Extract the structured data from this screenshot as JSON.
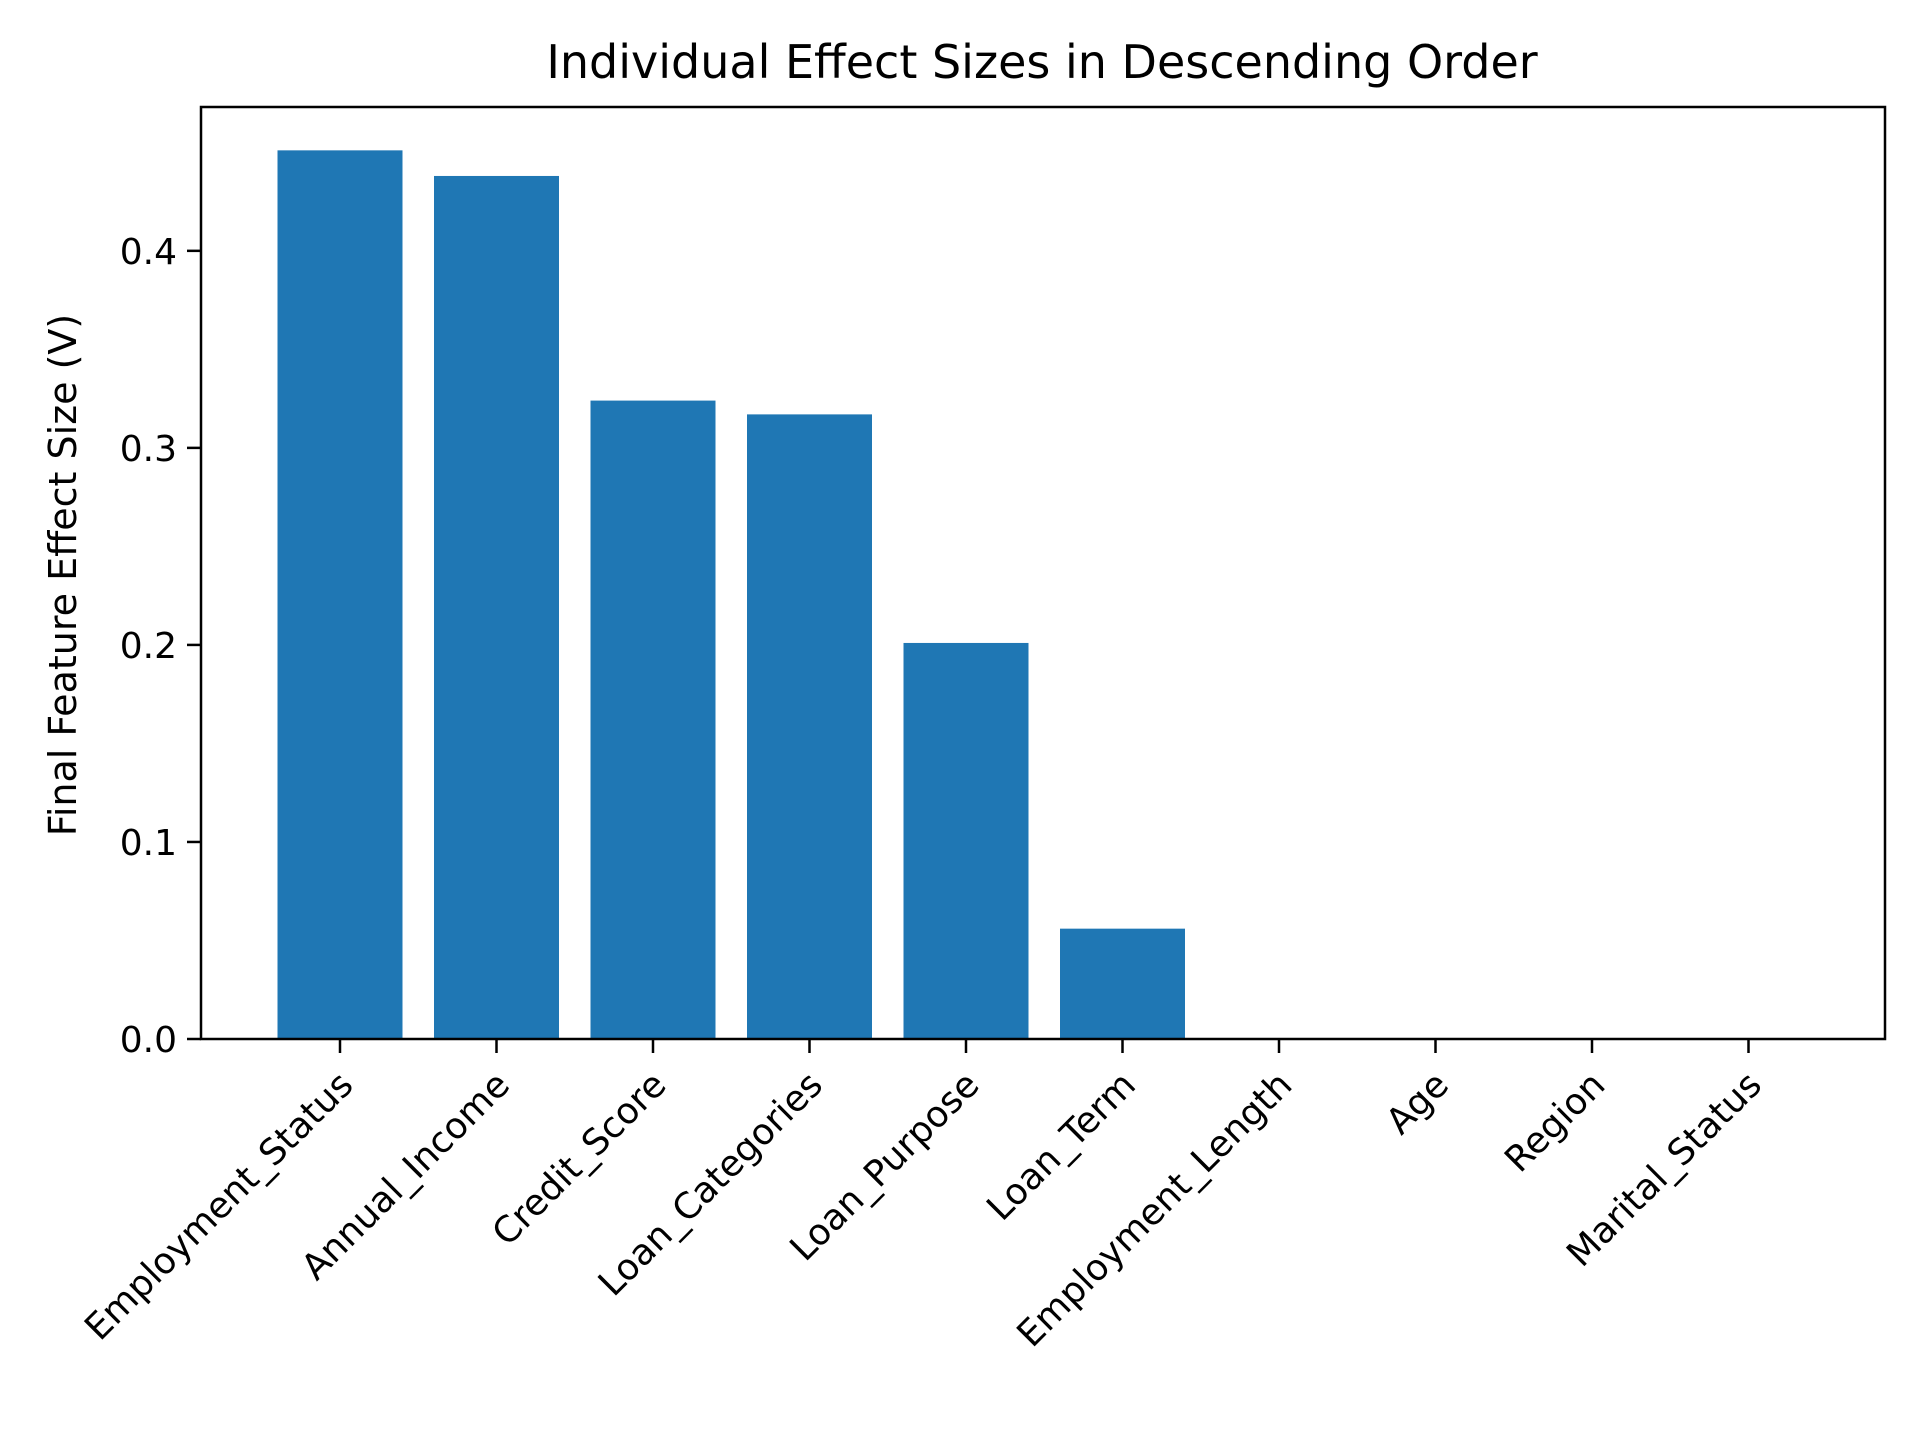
{
  "chart_data": {
    "type": "bar",
    "title": "Individual Effect Sizes in Descending Order",
    "xlabel": "",
    "ylabel": "Final Feature Effect Size (V)",
    "categories": [
      "Employment_Status",
      "Annual_Income",
      "Credit_Score",
      "Loan_Categories",
      "Loan_Purpose",
      "Loan_Term",
      "Employment_Length",
      "Age",
      "Region",
      "Marital_Status"
    ],
    "values": [
      0.451,
      0.438,
      0.324,
      0.317,
      0.201,
      0.056,
      0.0,
      0.0,
      0.0,
      0.0
    ],
    "ylim": [
      0,
      0.473
    ],
    "yticks": [
      "0.0",
      "0.1",
      "0.2",
      "0.3",
      "0.4"
    ],
    "bar_color": "#1f77b4",
    "grid": false
  }
}
